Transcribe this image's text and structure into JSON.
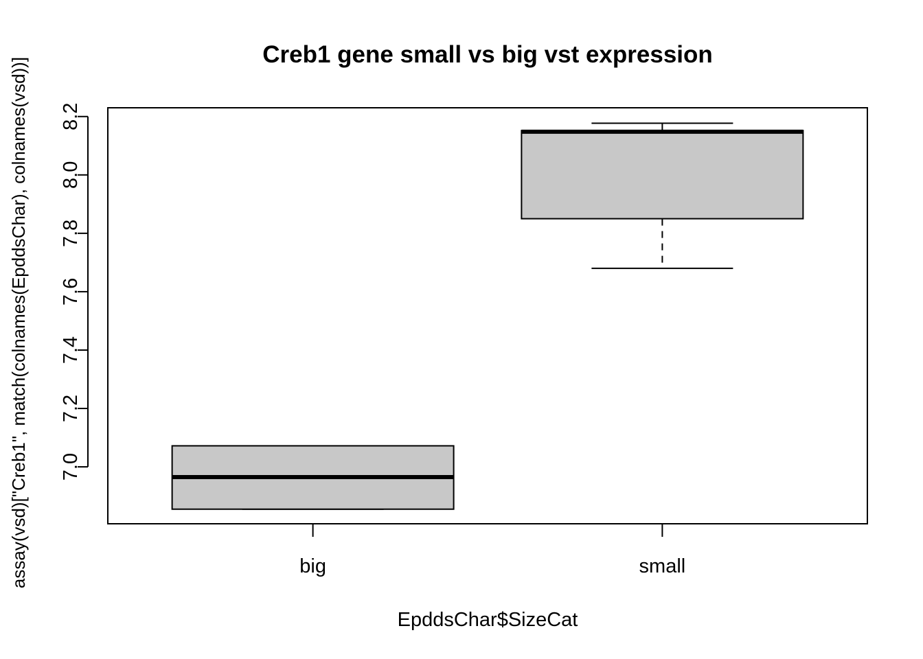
{
  "chart_data": {
    "type": "boxplot",
    "title": "Creb1 gene small vs big vst expression",
    "xlabel": "EpddsChar$SizeCat",
    "ylabel": "assay(vsd)[\"Creb1\", match(colnames(EpddsChar), colnames(vsd))]",
    "ylim": [
      6.805,
      8.23
    ],
    "yticks": [
      7.0,
      7.2,
      7.4,
      7.6,
      7.8,
      8.0,
      8.2
    ],
    "ytick_labels": [
      "7.0",
      "7.2",
      "7.4",
      "7.6",
      "7.8",
      "8.0",
      "8.2"
    ],
    "categories": [
      "big",
      "small"
    ],
    "boxes": [
      {
        "category": "big",
        "min": 6.855,
        "q1": 6.855,
        "median": 6.965,
        "q3": 7.072,
        "max": 7.072
      },
      {
        "category": "small",
        "min": 7.68,
        "q1": 7.85,
        "median": 8.148,
        "q3": 8.152,
        "max": 8.177
      }
    ],
    "box_fill": "#c8c8c8",
    "grid": false,
    "legend": "none"
  }
}
